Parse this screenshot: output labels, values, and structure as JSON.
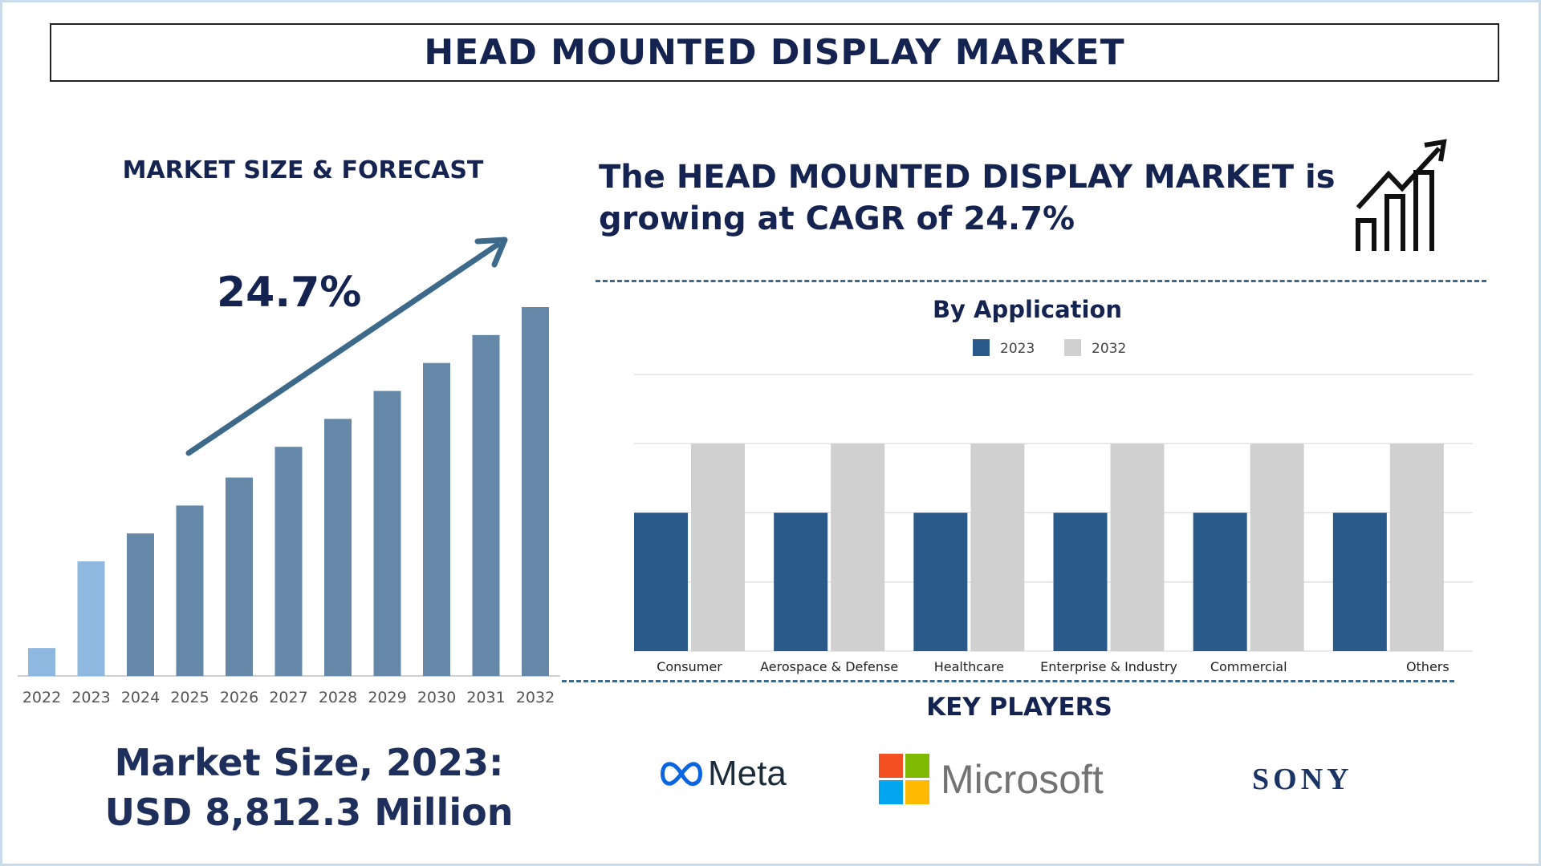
{
  "title": "HEAD MOUNTED DISPLAY MARKET",
  "forecast_heading": "MARKET SIZE & FORECAST",
  "cagr_label": "24.7%",
  "headline_line1": "The HEAD MOUNTED DISPLAY MARKET is",
  "headline_line2": "growing at CAGR of 24.7%",
  "market_size_line1": "Market Size, 2023:",
  "market_size_line2": "USD 8,812.3 Million",
  "key_players_heading": "KEY PLAYERS",
  "players": [
    "Meta",
    "Microsoft",
    "SONY"
  ],
  "colors": {
    "navy": "#14234f",
    "bar_forecast": "#6688a8",
    "bar_highlight": "#8fb8e0",
    "series_2023": "#2a5a8a",
    "series_2032": "#d0d0d0",
    "arrow": "#3d6a8a"
  },
  "chart_data": [
    {
      "type": "bar",
      "categories": [
        "2022",
        "2023",
        "2024",
        "2025",
        "2026",
        "2027",
        "2028",
        "2029",
        "2030",
        "2031",
        "2032"
      ],
      "values": [
        1.0,
        4.1,
        5.1,
        6.1,
        7.1,
        8.2,
        9.2,
        10.2,
        11.2,
        12.2,
        13.2
      ],
      "highlight": [
        "2022",
        "2023"
      ],
      "title": "",
      "xlabel": "",
      "ylabel": "",
      "axes_visible": false,
      "annotation": "24.7%",
      "trend_arrow": true
    },
    {
      "type": "bar",
      "title": "By Application",
      "categories": [
        "Consumer",
        "Aerospace & Defense",
        "Healthcare",
        "Enterprise & Industry",
        "Commercial",
        "Others"
      ],
      "series": [
        {
          "name": "2023",
          "values": [
            2,
            2,
            2,
            2,
            2,
            2
          ]
        },
        {
          "name": "2032",
          "values": [
            3,
            3,
            3,
            3,
            3,
            3
          ]
        }
      ],
      "ylim": [
        0,
        4
      ],
      "grid": true,
      "legend": "top-center",
      "y_tick_labels_visible": false
    }
  ]
}
